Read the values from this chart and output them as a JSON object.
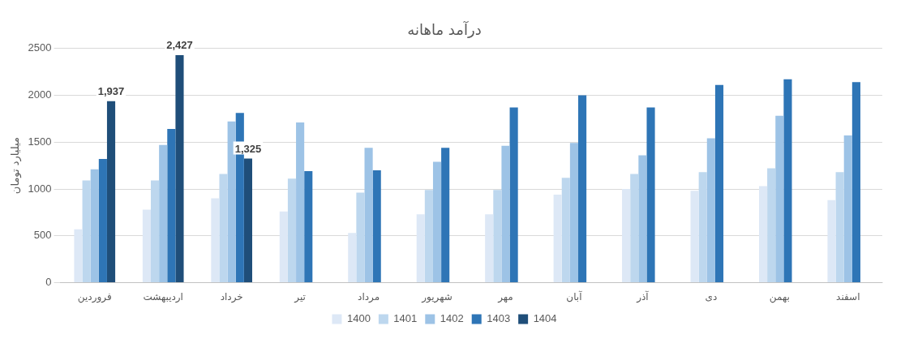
{
  "chart_data": {
    "type": "bar",
    "title": "درآمد ماهانه",
    "ylabel": "میلیارد تومان",
    "categories": [
      "فروردین",
      "اردیبهشت",
      "خرداد",
      "تیر",
      "مرداد",
      "شهریور",
      "مهر",
      "آبان",
      "آذر",
      "دی",
      "بهمن",
      "اسفند"
    ],
    "series": [
      {
        "name": "1400",
        "color": "#dde8f6",
        "values": [
          570,
          780,
          900,
          760,
          530,
          730,
          730,
          940,
          1000,
          980,
          1030,
          880
        ]
      },
      {
        "name": "1401",
        "color": "#bdd7ee",
        "values": [
          1090,
          1090,
          1160,
          1110,
          960,
          990,
          990,
          1120,
          1160,
          1180,
          1220,
          1180
        ]
      },
      {
        "name": "1402",
        "color": "#9dc3e6",
        "values": [
          1210,
          1470,
          1720,
          1710,
          1440,
          1290,
          1460,
          1490,
          1360,
          1540,
          1780,
          1570
        ]
      },
      {
        "name": "1403",
        "color": "#2e75b6",
        "values": [
          1320,
          1640,
          1810,
          1190,
          1200,
          1440,
          1870,
          2000,
          1870,
          2110,
          2170,
          2140
        ]
      },
      {
        "name": "1404",
        "color": "#1f4e79",
        "values": [
          1937,
          2427,
          1325,
          null,
          null,
          null,
          null,
          null,
          null,
          null,
          null,
          null
        ],
        "value_labels": [
          "1,937",
          "2,427",
          "1,325",
          null,
          null,
          null,
          null,
          null,
          null,
          null,
          null,
          null
        ]
      }
    ],
    "ylim": [
      0,
      2500
    ],
    "yticks": [
      0,
      500,
      1000,
      1500,
      2000,
      2500
    ],
    "grid": "y",
    "legend": "bottom"
  }
}
